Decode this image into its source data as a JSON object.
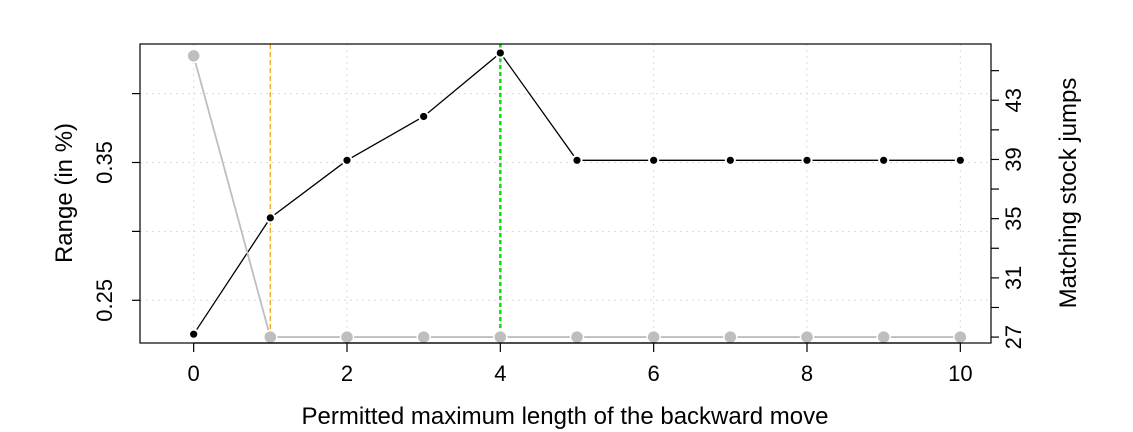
{
  "chart_data": {
    "type": "line",
    "title": "",
    "xlabel": "Permitted maximum length of the backward move",
    "ylabel_left": "Range (in %)",
    "ylabel_right": "Matching stock jumps",
    "x": [
      0,
      1,
      2,
      3,
      4,
      5,
      6,
      7,
      8,
      9,
      10
    ],
    "xlim": [
      -0.7,
      10.4
    ],
    "x_ticks": [
      0,
      2,
      4,
      6,
      8,
      10
    ],
    "ylim_left": [
      0.219,
      0.436
    ],
    "y_ticks_left_labeled": [
      0.25,
      0.35
    ],
    "y_ticks_left_all": [
      0.25,
      0.3,
      0.35,
      0.4
    ],
    "ylim_right": [
      26.6,
      46.8
    ],
    "y_ticks_right_labeled": [
      27,
      31,
      35,
      39,
      43
    ],
    "y_ticks_right_all": [
      27,
      29,
      31,
      33,
      35,
      37,
      39,
      41,
      43,
      45
    ],
    "series": [
      {
        "axis": "left",
        "color": "#000000",
        "line_color": "#000000",
        "values": [
          0.2254,
          0.3098,
          0.3516,
          0.3834,
          0.4295,
          0.3516,
          0.3516,
          0.3516,
          0.3516,
          0.3516,
          0.3516
        ]
      },
      {
        "axis": "right",
        "color": "#BEBEBE",
        "line_color": "#BEBEBE",
        "values": [
          46.0,
          27.0,
          27.0,
          27.0,
          27.0,
          27.0,
          27.0,
          27.0,
          27.0,
          27.0,
          27.0
        ]
      }
    ],
    "vlines": [
      {
        "x": 1,
        "color": "#F5A623",
        "style": "dashed"
      },
      {
        "x": 4,
        "color": "#00E000",
        "style": "dashed"
      }
    ],
    "grid": true
  }
}
